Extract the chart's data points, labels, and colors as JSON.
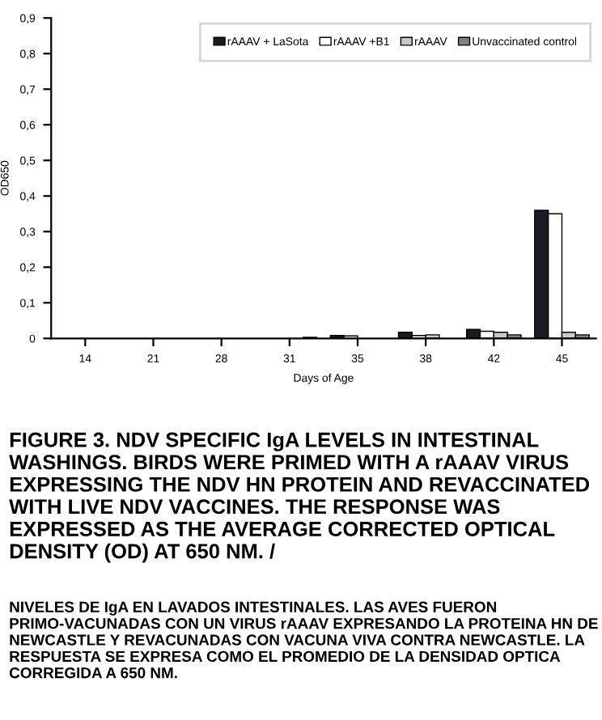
{
  "chart_data": {
    "type": "bar",
    "xlabel": "Days of Age",
    "ylabel": "OD650",
    "categories": [
      "14",
      "21",
      "28",
      "31",
      "35",
      "38",
      "42",
      "45"
    ],
    "series": [
      {
        "name": "rAAAV + LaSota",
        "color": "#1a1a22",
        "values": [
          0,
          0,
          0,
          0,
          0.008,
          0.017,
          0.025,
          0.36
        ]
      },
      {
        "name": "rAAAV +B1",
        "color": "#ffffff",
        "values": [
          0,
          null,
          0,
          0,
          0.007,
          0.008,
          0.02,
          0.35
        ]
      },
      {
        "name": "rAAAV",
        "color": "#c8c8c8",
        "values": [
          null,
          null,
          0,
          0,
          null,
          0.01,
          0.017,
          0.017
        ]
      },
      {
        "name": "Unvaccinated control",
        "color": "#808080",
        "values": [
          0,
          0,
          0,
          0.003,
          0,
          null,
          0.01,
          0.01
        ]
      }
    ],
    "ylim": [
      0,
      0.9
    ],
    "yticks": [
      0,
      {
        "value": 0.1,
        "label": "0,1"
      },
      {
        "value": 0.2,
        "label": "0,2"
      },
      {
        "value": 0.3,
        "label": "0,3"
      },
      {
        "value": 0.4,
        "label": "0,4"
      },
      {
        "value": 0.5,
        "label": "0,5"
      },
      {
        "value": 0.6,
        "label": "0,6"
      },
      {
        "value": 0.7,
        "label": "0,7"
      },
      {
        "value": 0.8,
        "label": "0,8"
      },
      {
        "value": 0.9,
        "label": "0,9"
      }
    ],
    "grid": false,
    "legend": "top right",
    "annotations": [
      "FIGURE 3. NDV SPECIFIC IgA LEVELS IN INTESTINAL WASHINGS. BIRDS WERE PRIMED WITH A rAAAV VIRUS EXPRESSING THE NDV HN PROTEIN AND REVACCINATED WITH LIVE NDV VACCINES. THE RESPONSE WAS EXPRESSED AS THE AVERAGE CORRECTED OPTICAL DENSITY (OD) AT 650 NM. /",
      "NIVELES DE IgA EN LAVADOS INTESTINALES. LAS AVES FUERON PRIMO-VACUNADAS CON UN VIRUS rAAAV EXPRESANDO LA PROTEINA HN DE NEWCASTLE Y REVACUNADAS CON VACUNA VIVA CONTRA NEWCASTLE. LA RESPUESTA SE EXPRESA COMO EL PROMEDIO DE LA DENSIDAD OPTICA CORREGIDA A 650 NM."
    ]
  }
}
